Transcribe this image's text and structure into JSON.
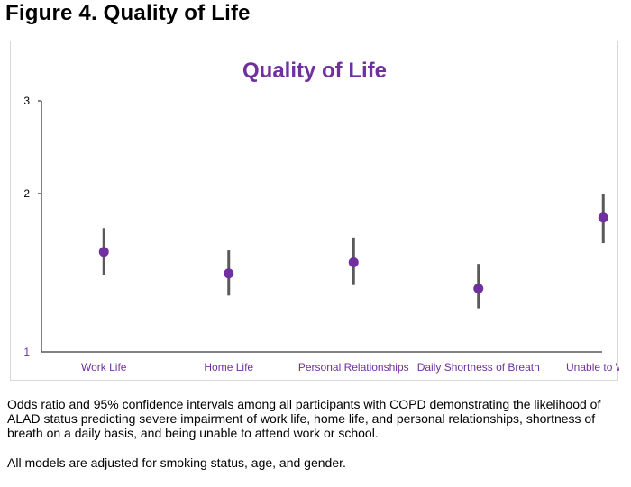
{
  "figure": {
    "title": "Figure 4. Quality of Life",
    "caption": "Odds ratio and 95% confidence intervals among all participants with COPD demonstrating the likelihood of ALAD status predicting severe impairment of work life, home life, and personal relationships, shortness of breath on a daily basis, and being unable to attend work or school.",
    "note": "All models are adjusted for smoking status, age, and gender."
  },
  "chart_data": {
    "type": "scatter",
    "title": "Quality of Life",
    "xlabel": "",
    "ylabel": "",
    "y_scale": "log",
    "ylim": [
      1,
      3
    ],
    "y_ticks": [
      "3",
      "2",
      "1"
    ],
    "grid": false,
    "legend": "none",
    "categories": [
      "Work Life",
      "Home Life",
      "Personal Relationships",
      "Daily Shortness of Breath",
      "Unable to Work"
    ],
    "series": [
      {
        "values": [
          1.55,
          1.41,
          1.48,
          1.32,
          1.8
        ],
        "ci_lower": [
          1.4,
          1.28,
          1.34,
          1.21,
          1.61
        ],
        "ci_upper": [
          1.72,
          1.56,
          1.65,
          1.47,
          2.0
        ]
      }
    ],
    "colors": {
      "title": "#7030a0",
      "category_labels": "#7030a0",
      "bottom_tick_label": "#7030a0",
      "points": "#7030a0",
      "error_bars": "#595959",
      "axes": "#595959",
      "tick_labels": "#000000"
    }
  }
}
